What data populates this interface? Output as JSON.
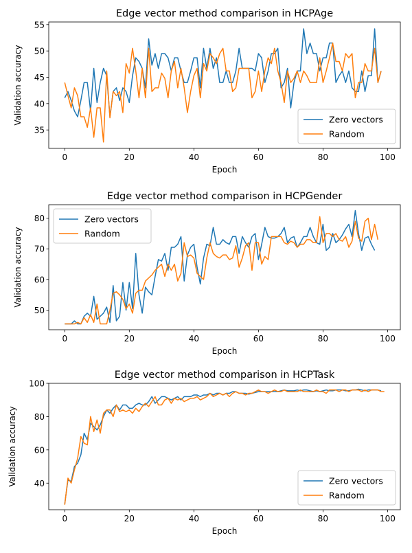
{
  "series_colors": {
    "zero": "#1f77b4",
    "random": "#ff7f0e"
  },
  "chart_data": [
    {
      "type": "line",
      "title": "Edge vector method comparison in HCPAge",
      "xlabel": "Epoch",
      "ylabel": "Validation accuracy",
      "xlim": [
        -4.95,
        103.95
      ],
      "ylim": [
        31.5,
        55.5
      ],
      "xticks": [
        0,
        20,
        40,
        60,
        80,
        100
      ],
      "yticks": [
        35,
        40,
        45,
        50,
        55
      ],
      "legend_position": "bottom-right",
      "x_start": 0,
      "series": [
        {
          "name": "Zero vectors",
          "values": [
            41.1,
            42.3,
            40.6,
            38.6,
            37.5,
            40.6,
            44.0,
            44.0,
            38.6,
            46.7,
            40.2,
            44.0,
            46.7,
            45.3,
            37.5,
            42.3,
            43.0,
            40.6,
            43.0,
            42.3,
            40.2,
            45.3,
            48.7,
            48.0,
            46.7,
            43.0,
            52.3,
            47.3,
            49.5,
            46.7,
            49.5,
            49.5,
            48.7,
            46.2,
            48.7,
            48.7,
            46.2,
            44.0,
            44.0,
            46.2,
            48.7,
            48.7,
            43.0,
            50.5,
            46.7,
            50.5,
            46.7,
            48.7,
            44.0,
            44.0,
            46.2,
            44.0,
            44.0,
            46.2,
            50.5,
            46.7,
            46.7,
            46.7,
            46.7,
            46.2,
            49.5,
            48.7,
            44.0,
            46.2,
            49.5,
            49.5,
            50.5,
            43.0,
            44.0,
            46.7,
            39.2,
            44.0,
            46.2,
            46.2,
            54.2,
            49.5,
            51.5,
            49.5,
            49.5,
            46.2,
            48.7,
            48.7,
            51.5,
            51.5,
            44.0,
            45.3,
            46.2,
            44.0,
            46.2,
            43.0,
            42.3,
            42.3,
            46.2,
            42.3,
            45.3,
            45.3,
            54.2,
            44.0,
            46.2
          ],
          "color": "#1f77b4"
        },
        {
          "name": "Random",
          "values": [
            44.0,
            41.5,
            39.2,
            43.0,
            41.5,
            37.5,
            37.5,
            35.5,
            39.2,
            33.6,
            39.2,
            39.2,
            32.7,
            46.2,
            37.3,
            42.3,
            41.5,
            42.3,
            38.3,
            47.6,
            45.8,
            50.5,
            46.2,
            41.1,
            46.7,
            41.1,
            50.5,
            42.3,
            43.0,
            43.0,
            45.8,
            44.8,
            41.1,
            46.2,
            48.0,
            43.0,
            46.7,
            43.0,
            38.3,
            42.3,
            45.3,
            46.7,
            41.1,
            47.6,
            46.2,
            49.5,
            48.7,
            47.6,
            49.5,
            50.5,
            46.2,
            46.2,
            42.3,
            43.0,
            46.7,
            46.7,
            46.7,
            46.7,
            41.1,
            42.3,
            46.2,
            42.3,
            46.2,
            48.7,
            47.6,
            50.5,
            46.2,
            44.0,
            40.2,
            46.2,
            44.0,
            44.8,
            46.2,
            44.0,
            46.2,
            45.3,
            44.0,
            44.0,
            44.0,
            48.7,
            44.0,
            46.2,
            48.7,
            51.5,
            48.0,
            48.0,
            46.2,
            49.5,
            48.7,
            49.5,
            41.1,
            44.0,
            44.0,
            47.6,
            46.2,
            46.2,
            50.5,
            44.0,
            46.2
          ],
          "color": "#ff7f0e"
        }
      ]
    },
    {
      "type": "line",
      "title": "Edge vector method comparison in HCPGender",
      "xlabel": "Epoch",
      "ylabel": "Validation accuracy",
      "xlim": [
        -4.95,
        103.95
      ],
      "ylim": [
        43.6,
        84.4
      ],
      "xticks": [
        0,
        20,
        40,
        60,
        80,
        100
      ],
      "yticks": [
        50,
        60,
        70,
        80
      ],
      "legend_position": "top-left",
      "x_start": 0,
      "series": [
        {
          "name": "Zero vectors",
          "values": [
            45.5,
            45.5,
            45.5,
            46.5,
            45.5,
            45.5,
            48.0,
            49.0,
            48.0,
            54.5,
            47.0,
            48.0,
            49.0,
            51.0,
            46.0,
            58.0,
            46.5,
            48.0,
            59.0,
            50.0,
            59.0,
            50.5,
            68.5,
            55.0,
            49.0,
            57.5,
            56.0,
            55.0,
            61.0,
            66.5,
            66.0,
            68.5,
            63.0,
            70.5,
            70.5,
            71.5,
            74.0,
            59.5,
            68.0,
            70.5,
            71.5,
            64.0,
            58.5,
            67.0,
            71.5,
            71.0,
            77.0,
            71.5,
            71.5,
            73.0,
            72.0,
            71.5,
            74.0,
            74.0,
            68.5,
            74.0,
            72.0,
            70.5,
            74.0,
            75.0,
            66.5,
            71.5,
            77.0,
            74.0,
            73.5,
            73.5,
            74.0,
            75.0,
            77.0,
            72.0,
            73.5,
            74.0,
            70.5,
            72.0,
            74.0,
            74.0,
            77.0,
            74.0,
            72.0,
            71.5,
            78.0,
            69.5,
            70.5,
            75.0,
            72.0,
            73.0,
            74.5,
            76.5,
            78.0,
            74.0,
            82.5,
            75.0,
            69.5,
            73.5,
            74.0,
            71.5,
            69.5
          ],
          "color": "#1f77b4"
        },
        {
          "name": "Random",
          "values": [
            45.5,
            45.5,
            45.5,
            45.5,
            46.0,
            45.5,
            47.5,
            46.0,
            48.5,
            46.0,
            52.0,
            45.5,
            45.5,
            45.5,
            50.0,
            55.5,
            56.0,
            55.0,
            53.5,
            50.5,
            52.0,
            49.0,
            55.5,
            56.5,
            56.5,
            59.5,
            60.5,
            61.5,
            63.0,
            64.0,
            65.0,
            61.0,
            65.0,
            63.0,
            65.0,
            59.5,
            62.0,
            72.0,
            67.5,
            68.0,
            67.0,
            62.0,
            61.0,
            60.0,
            67.0,
            72.0,
            68.5,
            67.5,
            67.0,
            68.0,
            68.0,
            66.5,
            67.0,
            71.0,
            64.0,
            67.0,
            71.0,
            72.0,
            63.0,
            72.0,
            72.0,
            65.0,
            67.5,
            66.5,
            74.0,
            74.0,
            74.0,
            74.0,
            72.0,
            71.5,
            72.5,
            72.0,
            70.5,
            71.5,
            71.5,
            73.0,
            73.0,
            72.0,
            72.0,
            80.5,
            72.0,
            75.0,
            75.0,
            74.0,
            75.0,
            73.0,
            72.5,
            74.0,
            70.5,
            72.5,
            79.0,
            73.5,
            72.5,
            79.0,
            80.0,
            73.0,
            78.0,
            73.0
          ],
          "color": "#ff7f0e"
        }
      ]
    },
    {
      "type": "line",
      "title": "Edge vector method comparison in HCPTask",
      "xlabel": "Epoch",
      "ylabel": "Validation accuracy",
      "xlim": [
        -4.95,
        103.95
      ],
      "ylim": [
        24.0,
        100.0
      ],
      "xticks": [
        0,
        20,
        40,
        60,
        80,
        100
      ],
      "yticks": [
        40,
        60,
        80,
        100
      ],
      "legend_position": "bottom-right",
      "x_start": 0,
      "series": [
        {
          "name": "Zero vectors",
          "values": [
            27.5,
            42.0,
            41.0,
            50.0,
            52.0,
            57.0,
            70.0,
            66.0,
            76.0,
            74.0,
            72.0,
            75.0,
            80.0,
            84.0,
            82.0,
            85.0,
            87.0,
            84.0,
            87.0,
            87.0,
            85.0,
            85.0,
            87.0,
            88.0,
            87.0,
            87.0,
            89.0,
            92.0,
            88.0,
            90.0,
            92.0,
            92.0,
            91.0,
            90.0,
            91.0,
            92.0,
            90.0,
            92.0,
            92.0,
            92.0,
            93.0,
            93.0,
            92.0,
            93.0,
            93.0,
            94.0,
            93.0,
            94.0,
            94.0,
            93.0,
            94.0,
            94.0,
            95.0,
            95.0,
            94.0,
            94.0,
            94.0,
            93.5,
            94.0,
            94.5,
            95.0,
            95.0,
            95.0,
            95.0,
            95.0,
            95.0,
            95.0,
            95.5,
            96.0,
            95.5,
            95.5,
            95.5,
            96.0,
            95.5,
            96.0,
            96.0,
            95.5,
            95.0,
            95.5,
            95.0,
            95.5,
            96.0,
            95.5,
            95.5,
            96.0,
            96.0,
            96.0,
            95.5,
            95.5,
            96.0,
            96.0,
            96.5,
            96.0,
            95.5,
            96.0,
            96.0,
            96.0,
            96.0,
            95.5
          ],
          "color": "#1f77b4"
        },
        {
          "name": "Random",
          "values": [
            27.0,
            43.0,
            40.0,
            48.0,
            55.0,
            68.0,
            64.0,
            63.0,
            80.0,
            71.0,
            78.0,
            70.0,
            82.0,
            84.0,
            84.0,
            80.0,
            87.0,
            83.0,
            84.0,
            83.0,
            84.0,
            82.0,
            85.0,
            83.0,
            86.0,
            88.0,
            86.0,
            89.0,
            92.0,
            87.0,
            87.0,
            90.0,
            91.0,
            88.0,
            91.0,
            90.0,
            91.0,
            89.0,
            90.0,
            91.0,
            91.0,
            92.0,
            90.0,
            91.0,
            92.0,
            94.0,
            92.0,
            93.0,
            94.0,
            93.0,
            94.0,
            92.0,
            94.0,
            95.0,
            94.0,
            94.0,
            93.0,
            94.0,
            94.0,
            95.0,
            96.0,
            95.0,
            95.0,
            94.0,
            95.0,
            96.0,
            95.0,
            95.0,
            96.0,
            95.0,
            95.0,
            95.0,
            95.0,
            96.0,
            95.0,
            95.0,
            95.0,
            95.0,
            96.0,
            95.0,
            95.0,
            94.0,
            96.0,
            96.0,
            96.0,
            95.0,
            96.0,
            96.0,
            95.0,
            96.0,
            96.0,
            96.0,
            95.0,
            96.0,
            95.0,
            96.0,
            96.0,
            96.0,
            95.0,
            95.0
          ],
          "color": "#ff7f0e"
        }
      ]
    }
  ]
}
